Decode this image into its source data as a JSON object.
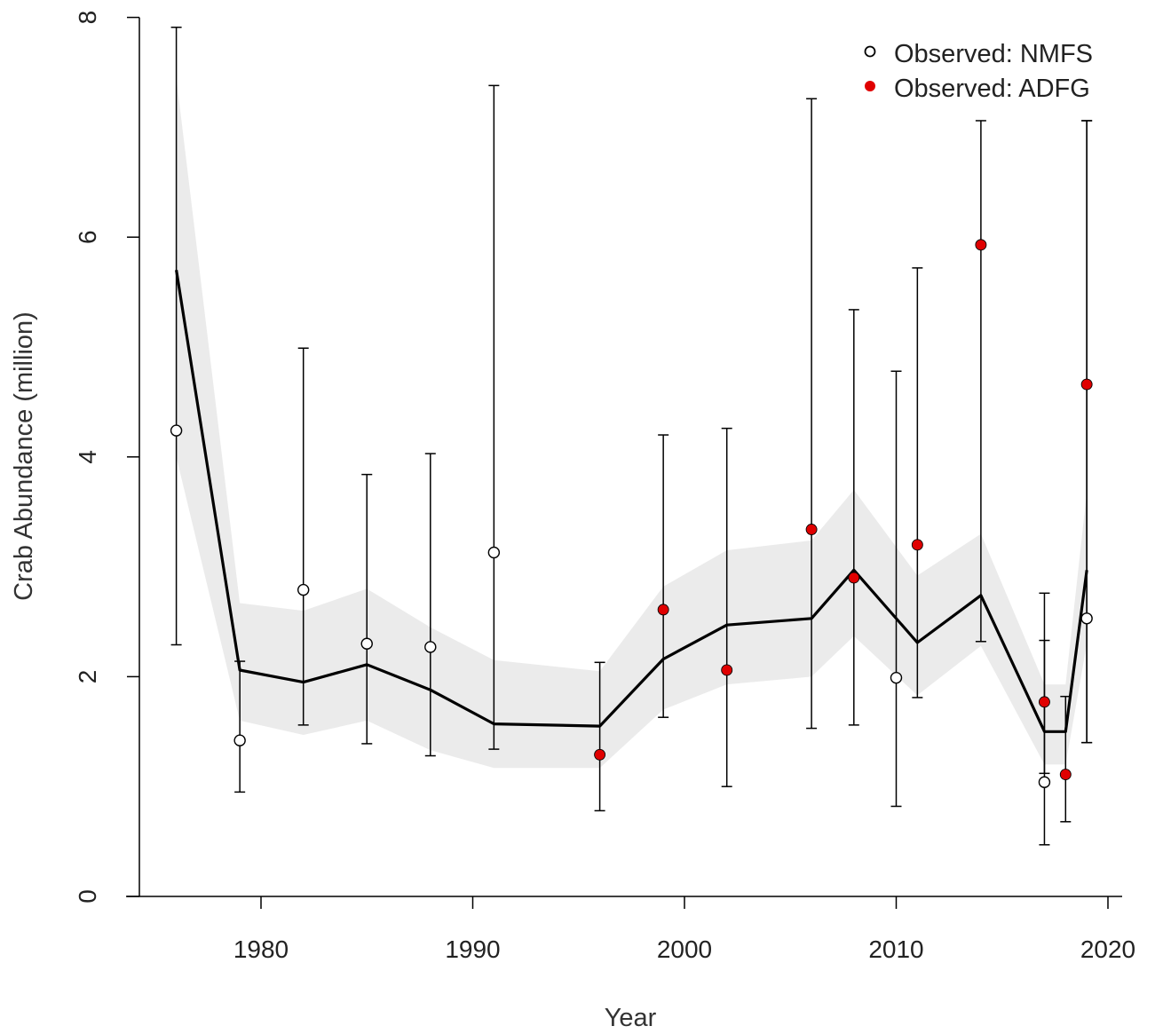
{
  "chart_data": {
    "type": "line",
    "xlabel": "Year",
    "ylabel": "Crab Abundance (million)",
    "xlim": [
      1974.5,
      2020.5
    ],
    "ylim": [
      0,
      8
    ],
    "x_ticks": [
      1980,
      1990,
      2000,
      2010,
      2020
    ],
    "y_ticks": [
      0,
      2,
      4,
      6,
      8
    ],
    "grid": false,
    "legend_position": "top-right",
    "legend": [
      {
        "label": "Observed: NMFS",
        "marker": "open-circle"
      },
      {
        "label": "Observed: ADFG",
        "marker": "red-filled-circle"
      }
    ],
    "colors": {
      "line": "#000000",
      "ribbon": "#ebebeb",
      "nmfs_fill": "#ffffff",
      "adfg_fill": "#e00000",
      "error_bar": "#000000"
    },
    "model_fit": {
      "x": [
        1976,
        1979,
        1982,
        1985,
        1988,
        1991,
        1996,
        1999,
        2002,
        2006,
        2008,
        2011,
        2014,
        2017,
        2018,
        2019
      ],
      "y": [
        5.7,
        2.06,
        1.95,
        2.11,
        1.88,
        1.57,
        1.55,
        2.16,
        2.47,
        2.53,
        2.97,
        2.31,
        2.74,
        1.5,
        1.5,
        2.97
      ],
      "lower": [
        4.0,
        1.6,
        1.47,
        1.6,
        1.33,
        1.17,
        1.17,
        1.7,
        1.93,
        2.0,
        2.37,
        1.83,
        2.28,
        1.2,
        1.2,
        2.3
      ],
      "upper": [
        7.45,
        2.67,
        2.6,
        2.8,
        2.45,
        2.15,
        2.05,
        2.82,
        3.15,
        3.24,
        3.7,
        2.92,
        3.3,
        1.93,
        1.93,
        3.68
      ]
    },
    "series": [
      {
        "name": "Observed: NMFS",
        "x": [
          1976,
          1979,
          1982,
          1985,
          1988,
          1991,
          2010,
          2017,
          2019
        ],
        "y": [
          4.24,
          1.42,
          2.79,
          2.3,
          2.27,
          3.13,
          1.99,
          1.04,
          2.53
        ],
        "lower": [
          2.29,
          0.95,
          1.56,
          1.39,
          1.28,
          1.34,
          0.82,
          0.47,
          1.4
        ],
        "upper": [
          7.91,
          2.14,
          4.99,
          3.84,
          4.03,
          7.38,
          4.78,
          2.33,
          7.06
        ]
      },
      {
        "name": "Observed: ADFG",
        "x": [
          1996,
          1999,
          2002,
          2006,
          2008,
          2011,
          2014,
          2017,
          2018,
          2019
        ],
        "y": [
          1.29,
          2.61,
          2.06,
          3.34,
          2.9,
          3.2,
          5.93,
          1.77,
          1.11,
          4.66
        ],
        "lower": [
          0.78,
          1.63,
          1.0,
          1.53,
          1.56,
          1.81,
          2.32,
          1.12,
          0.68,
          1.4
        ],
        "upper": [
          2.13,
          4.2,
          4.26,
          7.26,
          5.34,
          5.72,
          7.06,
          2.76,
          1.82,
          7.06
        ]
      }
    ]
  }
}
